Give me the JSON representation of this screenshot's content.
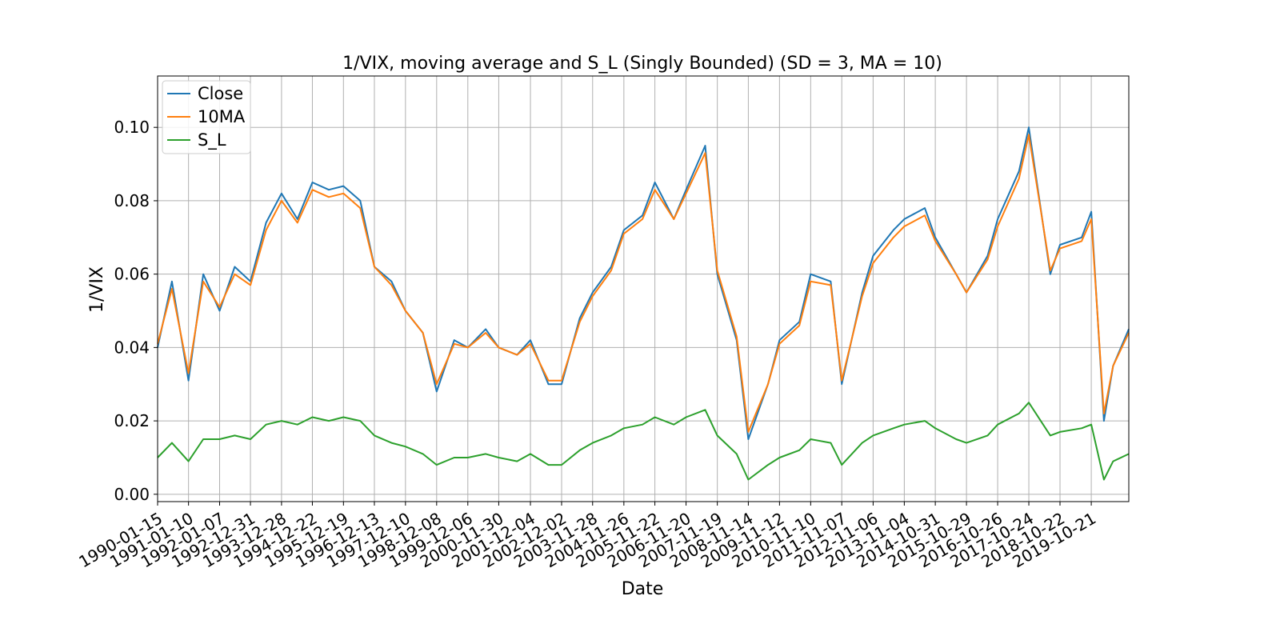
{
  "chart_data": {
    "type": "line",
    "title": "1/VIX, moving average and S_L (Singly Bounded) (SD = 3, MA = 10)",
    "xlabel": "Date",
    "ylabel": "1/VIX",
    "x_range": [
      "1990-01-15",
      "2020-12-31"
    ],
    "ylim": [
      -0.002,
      0.114
    ],
    "y_ticks": [
      0.0,
      0.02,
      0.04,
      0.06,
      0.08,
      0.1
    ],
    "y_tick_labels": [
      "0.00",
      "0.02",
      "0.04",
      "0.06",
      "0.08",
      "0.10"
    ],
    "x_ticks": [
      "1990-01-15",
      "1991-01-10",
      "1992-01-07",
      "1992-12-31",
      "1993-12-28",
      "1994-12-22",
      "1995-12-19",
      "1996-12-13",
      "1997-12-10",
      "1998-12-08",
      "1999-12-06",
      "2000-11-30",
      "2001-12-04",
      "2002-12-02",
      "2003-11-28",
      "2004-11-26",
      "2005-11-22",
      "2006-11-20",
      "2007-11-19",
      "2008-11-14",
      "2009-11-12",
      "2010-11-10",
      "2011-11-07",
      "2012-11-06",
      "2013-11-04",
      "2014-10-31",
      "2015-10-29",
      "2016-10-26",
      "2017-10-24",
      "2018-10-22",
      "2019-10-21"
    ],
    "grid": true,
    "legend_position": "upper-left",
    "dates": [
      "1990-01-15",
      "1990-07-01",
      "1991-01-10",
      "1991-07-01",
      "1992-01-07",
      "1992-07-01",
      "1992-12-31",
      "1993-07-01",
      "1993-12-28",
      "1994-07-01",
      "1994-12-22",
      "1995-07-01",
      "1995-12-19",
      "1996-07-01",
      "1996-12-13",
      "1997-07-01",
      "1997-12-10",
      "1998-07-01",
      "1998-12-08",
      "1999-07-01",
      "1999-12-06",
      "2000-07-01",
      "2000-11-30",
      "2001-07-01",
      "2001-12-04",
      "2002-07-01",
      "2002-12-02",
      "2003-07-01",
      "2003-11-28",
      "2004-07-01",
      "2004-11-26",
      "2005-07-01",
      "2005-11-22",
      "2006-07-01",
      "2006-11-20",
      "2007-07-01",
      "2007-11-19",
      "2008-07-01",
      "2008-11-14",
      "2009-07-01",
      "2009-11-12",
      "2010-07-01",
      "2010-11-10",
      "2011-07-01",
      "2011-11-07",
      "2012-07-01",
      "2012-11-06",
      "2013-07-01",
      "2013-11-04",
      "2014-07-01",
      "2014-10-31",
      "2015-07-01",
      "2015-10-29",
      "2016-07-01",
      "2016-10-26",
      "2017-07-01",
      "2017-10-24",
      "2018-07-01",
      "2018-10-22",
      "2019-07-01",
      "2019-10-21",
      "2020-03-16",
      "2020-07-01",
      "2020-12-31"
    ],
    "series": [
      {
        "name": "Close",
        "color": "#1f77b4",
        "values": [
          0.04,
          0.058,
          0.031,
          0.06,
          0.05,
          0.062,
          0.058,
          0.074,
          0.082,
          0.075,
          0.085,
          0.083,
          0.084,
          0.08,
          0.062,
          0.058,
          0.05,
          0.044,
          0.028,
          0.042,
          0.04,
          0.045,
          0.04,
          0.038,
          0.042,
          0.03,
          0.03,
          0.048,
          0.055,
          0.062,
          0.072,
          0.076,
          0.085,
          0.075,
          0.083,
          0.095,
          0.06,
          0.042,
          0.015,
          0.03,
          0.042,
          0.047,
          0.06,
          0.058,
          0.03,
          0.055,
          0.065,
          0.072,
          0.075,
          0.078,
          0.07,
          0.06,
          0.055,
          0.065,
          0.075,
          0.088,
          0.1,
          0.06,
          0.068,
          0.07,
          0.077,
          0.02,
          0.035,
          0.045
        ]
      },
      {
        "name": "10MA",
        "color": "#ff7f0e",
        "values": [
          0.041,
          0.056,
          0.033,
          0.058,
          0.051,
          0.06,
          0.057,
          0.072,
          0.08,
          0.074,
          0.083,
          0.081,
          0.082,
          0.078,
          0.062,
          0.057,
          0.05,
          0.044,
          0.03,
          0.041,
          0.04,
          0.044,
          0.04,
          0.038,
          0.041,
          0.031,
          0.031,
          0.047,
          0.054,
          0.061,
          0.071,
          0.075,
          0.083,
          0.075,
          0.082,
          0.093,
          0.061,
          0.043,
          0.017,
          0.03,
          0.041,
          0.046,
          0.058,
          0.057,
          0.031,
          0.054,
          0.063,
          0.07,
          0.073,
          0.076,
          0.069,
          0.06,
          0.055,
          0.064,
          0.073,
          0.086,
          0.098,
          0.061,
          0.067,
          0.069,
          0.075,
          0.022,
          0.035,
          0.044
        ]
      },
      {
        "name": "S_L",
        "color": "#2ca02c",
        "values": [
          0.01,
          0.014,
          0.009,
          0.015,
          0.015,
          0.016,
          0.015,
          0.019,
          0.02,
          0.019,
          0.021,
          0.02,
          0.021,
          0.02,
          0.016,
          0.014,
          0.013,
          0.011,
          0.008,
          0.01,
          0.01,
          0.011,
          0.01,
          0.009,
          0.011,
          0.008,
          0.008,
          0.012,
          0.014,
          0.016,
          0.018,
          0.019,
          0.021,
          0.019,
          0.021,
          0.023,
          0.016,
          0.011,
          0.004,
          0.008,
          0.01,
          0.012,
          0.015,
          0.014,
          0.008,
          0.014,
          0.016,
          0.018,
          0.019,
          0.02,
          0.018,
          0.015,
          0.014,
          0.016,
          0.019,
          0.022,
          0.025,
          0.016,
          0.017,
          0.018,
          0.019,
          0.004,
          0.009,
          0.011
        ]
      }
    ]
  }
}
